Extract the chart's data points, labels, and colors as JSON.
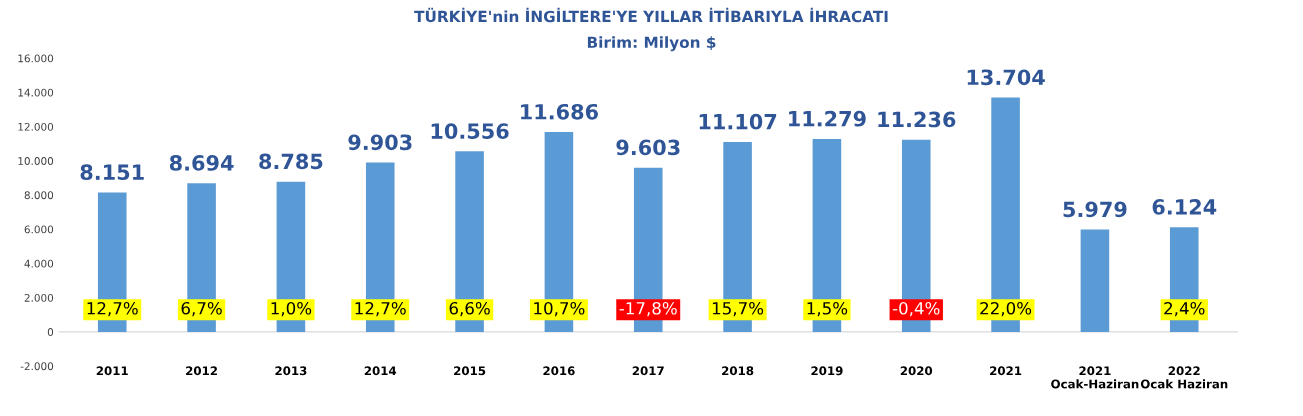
{
  "chart_data": {
    "type": "bar",
    "title": "TÜRKİYE'nin İNGİLTERE'YE YILLAR İTİBARIYLA İHRACATI",
    "subtitle": "Birim: Milyon $",
    "categories": [
      "2011",
      "2012",
      "2013",
      "2014",
      "2015",
      "2016",
      "2017",
      "2018",
      "2019",
      "2020",
      "2021",
      "2021\nOcak-Haziran",
      "2022\nOcak Haziran"
    ],
    "values": [
      8151,
      8694,
      8785,
      9903,
      10556,
      11686,
      9603,
      11107,
      11279,
      11236,
      13704,
      5979,
      6124
    ],
    "value_labels": [
      "8.151",
      "8.694",
      "8.785",
      "9.903",
      "10.556",
      "11.686",
      "9.603",
      "11.107",
      "11.279",
      "11.236",
      "13.704",
      "5.979",
      "6.124"
    ],
    "color": "#5b9bd5",
    "ylim": [
      -2000,
      16000
    ],
    "yticks": [
      {
        "value": -2000,
        "label": "-2.000"
      },
      0,
      {
        "value": 2000,
        "label": "2.000"
      },
      {
        "value": 4000,
        "label": "4.000"
      },
      {
        "value": 6000,
        "label": "6.000"
      },
      {
        "value": 8000,
        "label": "8.000"
      },
      {
        "value": 10000,
        "label": "10.000"
      },
      {
        "value": 12000,
        "label": "12.000"
      },
      {
        "value": 14000,
        "label": "14.000"
      },
      {
        "value": 16000,
        "label": "16.000"
      }
    ],
    "annotations": [
      "12,7%",
      "6,7%",
      "1,0%",
      "12,7%",
      "6,6%",
      "10,7%",
      "-17,8%",
      "15,7%",
      "1,5%",
      "-0,4%",
      "22,0%",
      null,
      "2,4%"
    ],
    "ref_lines": [
      {
        "axis": "y",
        "value": 0,
        "color": "#d9d9d9"
      }
    ],
    "grid": false,
    "legend": false
  }
}
